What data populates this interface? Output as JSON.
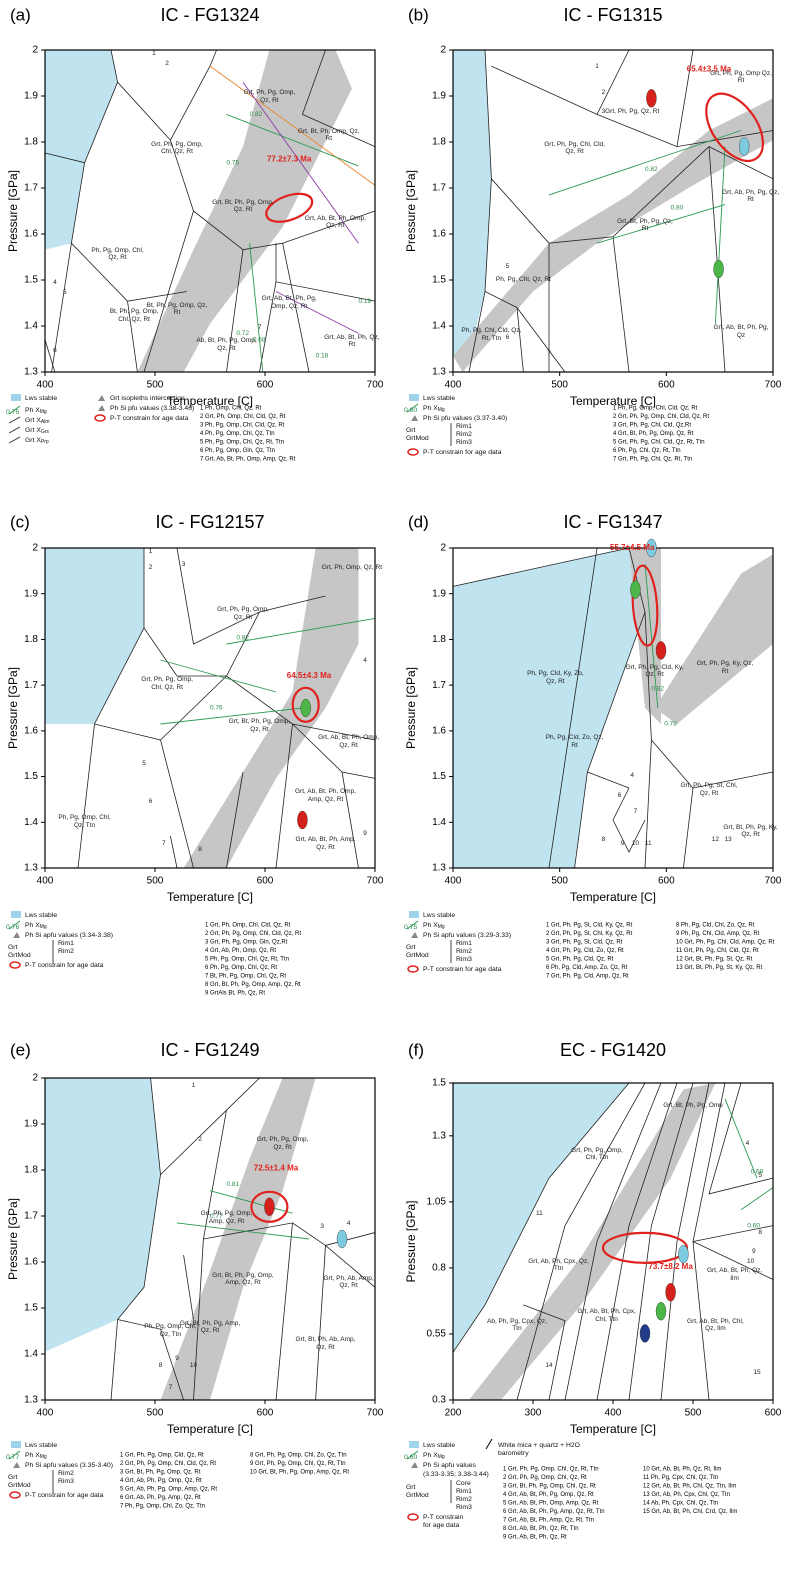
{
  "panels": [
    {
      "label": "(a)",
      "title": "IC - FG1324",
      "age": "77.2±7.3 Ma",
      "x_label": "Temperature [C]",
      "y_label": "Pressure [GPa]",
      "x_ticks": [
        400,
        500,
        600,
        700
      ],
      "y_ticks": [
        1.3,
        1.4,
        1.5,
        1.6,
        1.7,
        1.8,
        1.9,
        2
      ],
      "fields": [
        "Grt, Ph, Pg, Omp, Chl, Qz, Rt",
        "Ph, Pg, Omp, Chl, Qz, Rt",
        "Grt, Bt, Ph, Pg, Omp, Qz, Rt",
        "Grt, Ab, Bt, Ph, Omp, Qz, Rt",
        "Bt, Ph, Pg, Omp, Qz, Rt",
        "Ab, Bt, Ph, Pg, Omp, Qz, Rt",
        "Grt, Ab, Bt, Ph, Pg, Omp, Qz, Rt",
        "Grt, Ph, Pg, Omp, Qz, Rt",
        "Grt, Bt, Ph, Omp, Qz, Rt",
        "Grt, Ab, Bt, Ph, Qz, Rt",
        "Bt, Ph, Pg, Omp, Chl, Qz, Rt",
        "1",
        "2",
        "4",
        "5",
        "6",
        "7"
      ],
      "isopleths": [
        "0.82",
        "0.75",
        "0.19",
        "0.72",
        "0.68",
        "0.18"
      ],
      "legend": [
        {
          "text": "Lws stable"
        },
        {
          "text": "0.75"
        },
        {
          "text": "Ph X",
          "sub": "Mg"
        },
        {
          "text": "Grt X",
          "sub": "Alm"
        },
        {
          "text": "Grt X",
          "sub": "Grs"
        },
        {
          "text": "Grt X",
          "sub": "Prp"
        },
        {
          "text": "Grt isopleths intercection"
        },
        {
          "text": "Ph Si pfu values (3.38-3.46)"
        },
        {
          "text": "P-T constrain for age data"
        }
      ],
      "assemblages": [
        "1 Ph, Omp, Chl, Qz, Rt",
        "2 Grt, Ph, Omp, Chl, Cld, Qz, Rt",
        "3 Ph, Pg, Omp, Chl, Cld, Qz, Rt",
        "4 Ph, Pg, Omp, Chl, Qz, Ttn",
        "5 Ph, Pg, Omp, Chl, Qz, Rt, Ttn",
        "6 Ph, Pg, Omp, Gln, Qz, Ttn",
        "7 Grt, Ab, Bt, Ph, Omp, Amp, Qz, Rt"
      ]
    },
    {
      "label": "(b)",
      "title": "IC - FG1315",
      "age": "65.4±3.5 Ma",
      "x_label": "Temperature [C]",
      "y_label": "Pressure [GPa]",
      "x_ticks": [
        400,
        500,
        600,
        700
      ],
      "y_ticks": [
        1.3,
        1.4,
        1.5,
        1.6,
        1.7,
        1.8,
        1.9,
        2
      ],
      "fields": [
        "Grt, Ph, Pg, Omp Qz, Rt",
        "Grt, Ph, Pg, Chl, Cld, Qz, Rt",
        "Grt, Ph, Pg, Qz, Rt",
        "Grt, Bt, Ph, Pg, Qz, Rt",
        "Ph, Pg, Chl, Qz, Rt",
        "Ph, Pg, Chl, Cld, Qz, Rt, Ttn",
        "Grt, Ab, Bt, Ph, Pg, Qz",
        "Grt, Ab, Ph, Pg, Qz, Rt",
        "1",
        "2",
        "3",
        "5",
        "6",
        "7"
      ],
      "isopleths": [
        "0.82",
        "0.80"
      ],
      "legend": [
        {
          "text": "Lws stable"
        },
        {
          "text": "0.80"
        },
        {
          "text": "Ph X",
          "sub": "Mg"
        },
        {
          "text": "Ph Si pfu values (3.37-3.40)"
        },
        {
          "text": "Grt"
        },
        {
          "text": "GrtMod"
        },
        {
          "text": "Rim1"
        },
        {
          "text": "Rim2"
        },
        {
          "text": "Rim3"
        },
        {
          "text": "P-T constrain for age data"
        }
      ],
      "assemblages": [
        "1 Ph, Pg, Omp, Chl, Cld, Qz, Rt",
        "2 Grt, Ph, Pg, Omp, Chl, Cld, Qz, Rt",
        "3 Grt, Ph, Pg, Chl, Cld, Qz,Rt",
        "4 Grt, Bt, Ph, Pg, Omp, Qz, Rt",
        "5 Grt, Ph, Pg, Chl, Cld, Qz, Rt, Ttn",
        "6 Ph, Pg, Chl, Qz, Rt, Ttn",
        "7 Grt, Ph, Pg, Chl, Qz, Rt, Ttn"
      ]
    },
    {
      "label": "(c)",
      "title": "IC - FG12157",
      "age": "64.5±4.3 Ma",
      "x_label": "Temperature [C]",
      "y_label": "Pressure [GPa]",
      "x_ticks": [
        400,
        500,
        600,
        700
      ],
      "y_ticks": [
        1.3,
        1.4,
        1.5,
        1.6,
        1.7,
        1.8,
        1.9,
        2
      ],
      "fields": [
        "Grt, Ph, Pg, Omp, Qz, Rt",
        "Grt, Ph, Pg, Omp, Chl, Qz, Rt",
        "Grt, Bt, Ph, Pg, Omp, Qz, Rt",
        "Grt, Ab, Bt, Ph, Omp, Qz, Rt",
        "Grt, Ab, Bt, Ph, Omp, Amp, Qz, Rt",
        "Grt, Ab, Bt, Ph, Amp, Qz, Rt",
        "Ph, Pg, Omp, Chl, Qz, Ttn",
        "Grt, Ph, Omp, Qz, Rt",
        "1",
        "2",
        "3",
        "4",
        "5",
        "6",
        "7",
        "8",
        "9"
      ],
      "isopleths": [
        "0.82",
        "0.76"
      ],
      "legend": [
        {
          "text": "Lws stable"
        },
        {
          "text": "0.76"
        },
        {
          "text": "Ph X",
          "sub": "Mg"
        },
        {
          "text": "Ph Si apfu values (3.34-3.38)"
        },
        {
          "text": "Grt"
        },
        {
          "text": "GrtMod"
        },
        {
          "text": "Rim1"
        },
        {
          "text": "Rim2"
        },
        {
          "text": "P-T constrain for age data"
        }
      ],
      "assemblages": [
        "1 Grt, Ph, Omp, Chl, Cld, Qz, Rt",
        "2 Grt, Ph, Pg, Omp, Chl, Cld, Qz, Rt",
        "3 Grt, Ph, Pg, Omp, Gln, Qz,Rt",
        "4 Grt, Ab, Ph, Omp, Qz, Rt",
        "5 Ph, Pg, Omp, Chl, Qz, Rt, Ttn",
        "6 Ph, Pg, Omp, Chl, Qz, Rt",
        "7 Bt, Ph, Pg, Omp, Chl, Qz, Rt",
        "8 Grt, Bt, Ph, Pg, Omp, Amp, Qz, Rt",
        "9 GrtAls Bt, Ph, Qz, Rt"
      ]
    },
    {
      "label": "(d)",
      "title": "IC - FG1347",
      "age": "55.7±4.5 Ma",
      "x_label": "Temperature [C]",
      "y_label": "Pressure [GPa]",
      "x_ticks": [
        400,
        500,
        600,
        700
      ],
      "y_ticks": [
        1.3,
        1.4,
        1.5,
        1.6,
        1.7,
        1.8,
        1.9,
        2
      ],
      "fields": [
        "Grt, Ph, Pg, Ky, Qz, Rt",
        "Ph, Pg, Cld, Ky, Zo, Qz, Rt",
        "Grt, Ph, Pg, Cld, Ky, Qz, Rt",
        "Ph, Pg, Cld, Zo, Qz, Rt",
        "Grt, Ph, Pg, St, Chl, Qz, Rt",
        "Grt, Bt, Ph, Pg, Ky, Qz, Rt",
        "4",
        "6",
        "7",
        "8",
        "9",
        "10",
        "11",
        "12",
        "13"
      ],
      "isopleths": [
        "0.78",
        "0.82"
      ],
      "legend": [
        {
          "text": "Lws stable"
        },
        {
          "text": "0.75"
        },
        {
          "text": "Ph X",
          "sub": "Mg"
        },
        {
          "text": "Ph Si apfu values (3.29-3.33)"
        },
        {
          "text": "Grt"
        },
        {
          "text": "GrtMod"
        },
        {
          "text": "Rim1"
        },
        {
          "text": "Rim2"
        },
        {
          "text": "Rim3"
        },
        {
          "text": "P-T constrain for  age data"
        }
      ],
      "assemblages": [
        "1 Grt, Ph, Pg, St, Cld, Ky, Qz, Rt",
        "2 Grt, Ph, Pg, St, Chl, Ky, Qz, Rt",
        "3 Grt, Ph, Pg, St, Cld, Qz, Rt",
        "4 Grt, Ph, Pg, Cld, Zo, Qz, Rt",
        "5 Grt, Ph, Pg, Cld, Qz, Rt",
        "6 Ph, Pg, Cld, Amp, Zo, Qz, Rt",
        "7 Grt, Ph, Pg, Cld, Amp, Qz, Rt",
        "8 Ph, Pg, Cld, Chl, Zo, Qz, Rt",
        "9 Ph, Pg, Chl, Cld, Amp, Qz, Rt",
        "10 Grt, Ph, Pg, Chl, Cld, Amp, Qz, Rt",
        "11 Grt, Ph, Pg, Chl, Cld, Qz, Rt",
        "12 Grt, Bt, Ph, Pg, St, Qz, Rt",
        "13 Grt, Bt, Ph, Pg, St, Ky, Qz, Rt"
      ]
    },
    {
      "label": "(e)",
      "title": "IC - FG1249",
      "age": "72.5±1.4 Ma",
      "x_label": "Temperature [C]",
      "y_label": "Pressure [GPa]",
      "x_ticks": [
        400,
        500,
        600,
        700
      ],
      "y_ticks": [
        1.3,
        1.4,
        1.5,
        1.6,
        1.7,
        1.8,
        1.9,
        2
      ],
      "fields": [
        "Grt, Ph, Pg, Omp, Qz, Rt",
        "Grt, Ph, Pg, Omp, Amp, Qz, Rt",
        "Grt, Bt, Ph, Pg, Omp, Amp, Qz, Rt",
        "Grt, Ph, Ab, Amp, Qz, Rt",
        "Grt, Bt, Ph, Ab, Amp, Qz, Rt",
        "Grt, Bt, Ph, Pg, Amp, Qz, Rt",
        "Ph, Pg, Omp, Chl, Qz, Ttn",
        "1",
        "2",
        "3",
        "4",
        "7",
        "8",
        "9",
        "10"
      ],
      "isopleths": [
        "0.81",
        "0.77"
      ],
      "legend": [
        {
          "text": "Lws stable"
        },
        {
          "text": "0.77"
        },
        {
          "text": "Ph X",
          "sub": "Mg"
        },
        {
          "text": "Ph Si apfu values (3.35-3.40)"
        },
        {
          "text": "Grt"
        },
        {
          "text": "GrtMod"
        },
        {
          "text": "Rim2"
        },
        {
          "text": "Rim3"
        },
        {
          "text": "P-T constrain for age data"
        }
      ],
      "assemblages": [
        "1 Grt, Ph, Pg, Omp, Cld, Qz, Rt",
        "2 Grt, Ph, Pg, Omp, Chl, Cld, Qz, Rt",
        "3 Grt, Bt, Ph, Pg, Omp, Qz, Rt",
        "4 Grt, Ab, Ph, Pg, Omp, Qz, Rt",
        "5 Grt, Ab, Ph, Pg, Omp, Amp, Qz, Rt",
        "6 Grt, Ab, Ph, Pg, Amp, Qz, Rt",
        "7 Ph, Pg, Omp, Chl, Zo, Qz, Ttn",
        "8 Grt, Ph, Pg, Omp, Chl, Zo, Qz, Ttn",
        "9 Grt, Ph, Pg, Omp, Chl, Qz, Rt, Ttn",
        "10 Grt, Bt, Ph, Pg, Omp, Amp, Qz, Rt"
      ]
    },
    {
      "label": "(f)",
      "title": "EC - FG1420",
      "age": "73.7±8.2 Ma",
      "x_label": "Temperature [C]",
      "y_label": "Pressure [GPa]",
      "x_ticks": [
        200,
        300,
        400,
        500,
        600
      ],
      "y_ticks": [
        0.3,
        0.55,
        0.8,
        1.05,
        1.3,
        1.5
      ],
      "fields": [
        "Grt, Ab, Bt, Ph, Qz, Ilm",
        "Grt, Ab, Bt, Ph, Chl, Qz, Ilm",
        "Grt, Ph, Pg, Omp, Chl, Ttn",
        "Grt, Ab, Ph, Cpx, Qz, Ttn",
        "Ab, Ph, Pg, Cpx, Qz, Ttn",
        "Grt, Ab, Bt, Ph, Cpx, Chl, Ttn",
        "Grt, Bt, Ph, Pg, Omp",
        "4",
        "5",
        "8",
        "9",
        "10",
        "11",
        "14",
        "15"
      ],
      "isopleths": [
        "0.60",
        "0.68"
      ],
      "legend": [
        {
          "text": "Lws stable"
        },
        {
          "text": "0.60"
        },
        {
          "text": "Ph X",
          "sub": "Mg"
        },
        {
          "text": "Ph Si apfu values"
        },
        {
          "text": "(3.33-3.35; 3.38-3.44)"
        },
        {
          "text": "Grt"
        },
        {
          "text": "GrtMod"
        },
        {
          "text": "Core"
        },
        {
          "text": "Rim1"
        },
        {
          "text": "Rim2"
        },
        {
          "text": "Rim3"
        },
        {
          "text": "P-T constrain"
        },
        {
          "text": "for age data"
        },
        {
          "text": "White mica + quartz + H2O"
        },
        {
          "text": "barometry"
        }
      ],
      "assemblages": [
        "1 Grt, Ph, Pg, Omp, Chl, Qz, Rt, Ttn",
        "2 Grt, Ph, Pg, Omp, Chl, Qz, Rt",
        "3 Grt, Bt, Ph, Pg, Omp, Chl, Qz, Rt",
        "4 Grt, Ab, Bt, Ph, Pg, Omp, Qz, Rt",
        "5 Grt, Ab, Bt, Ph, Omp, Amp, Qz, Rt",
        "6 Grt, Ab, Bt, Ph, Pg, Amp, Qz, Rt, Ttn",
        "7 Grt, Ab, Bt, Ph, Amp, Qz, Rt, Ttn",
        "8 Grt, Ab, Bt, Ph, Qz, Rt, Ttn",
        "9 Grt, Ab, Bt, Ph, Qz, Rt",
        "10 Grt, Ab, Bt, Ph, Qz, Rt, Ilm",
        "11 Ph, Pg, Cpx, Chl, Qz, Ttn",
        "12 Grt, Ab, Bt, Ph, Chl, Qz, Ttn, Ilm",
        "13 Grt, Ab, Ph, Cpx, Chl, Qz, Ttn",
        "14 Ab, Ph, Cpx, Chl, Qz, Ttn",
        "15 Grt, Ab, Bt, Ph, Chl, Crd, Qz, Ilm"
      ]
    }
  ]
}
